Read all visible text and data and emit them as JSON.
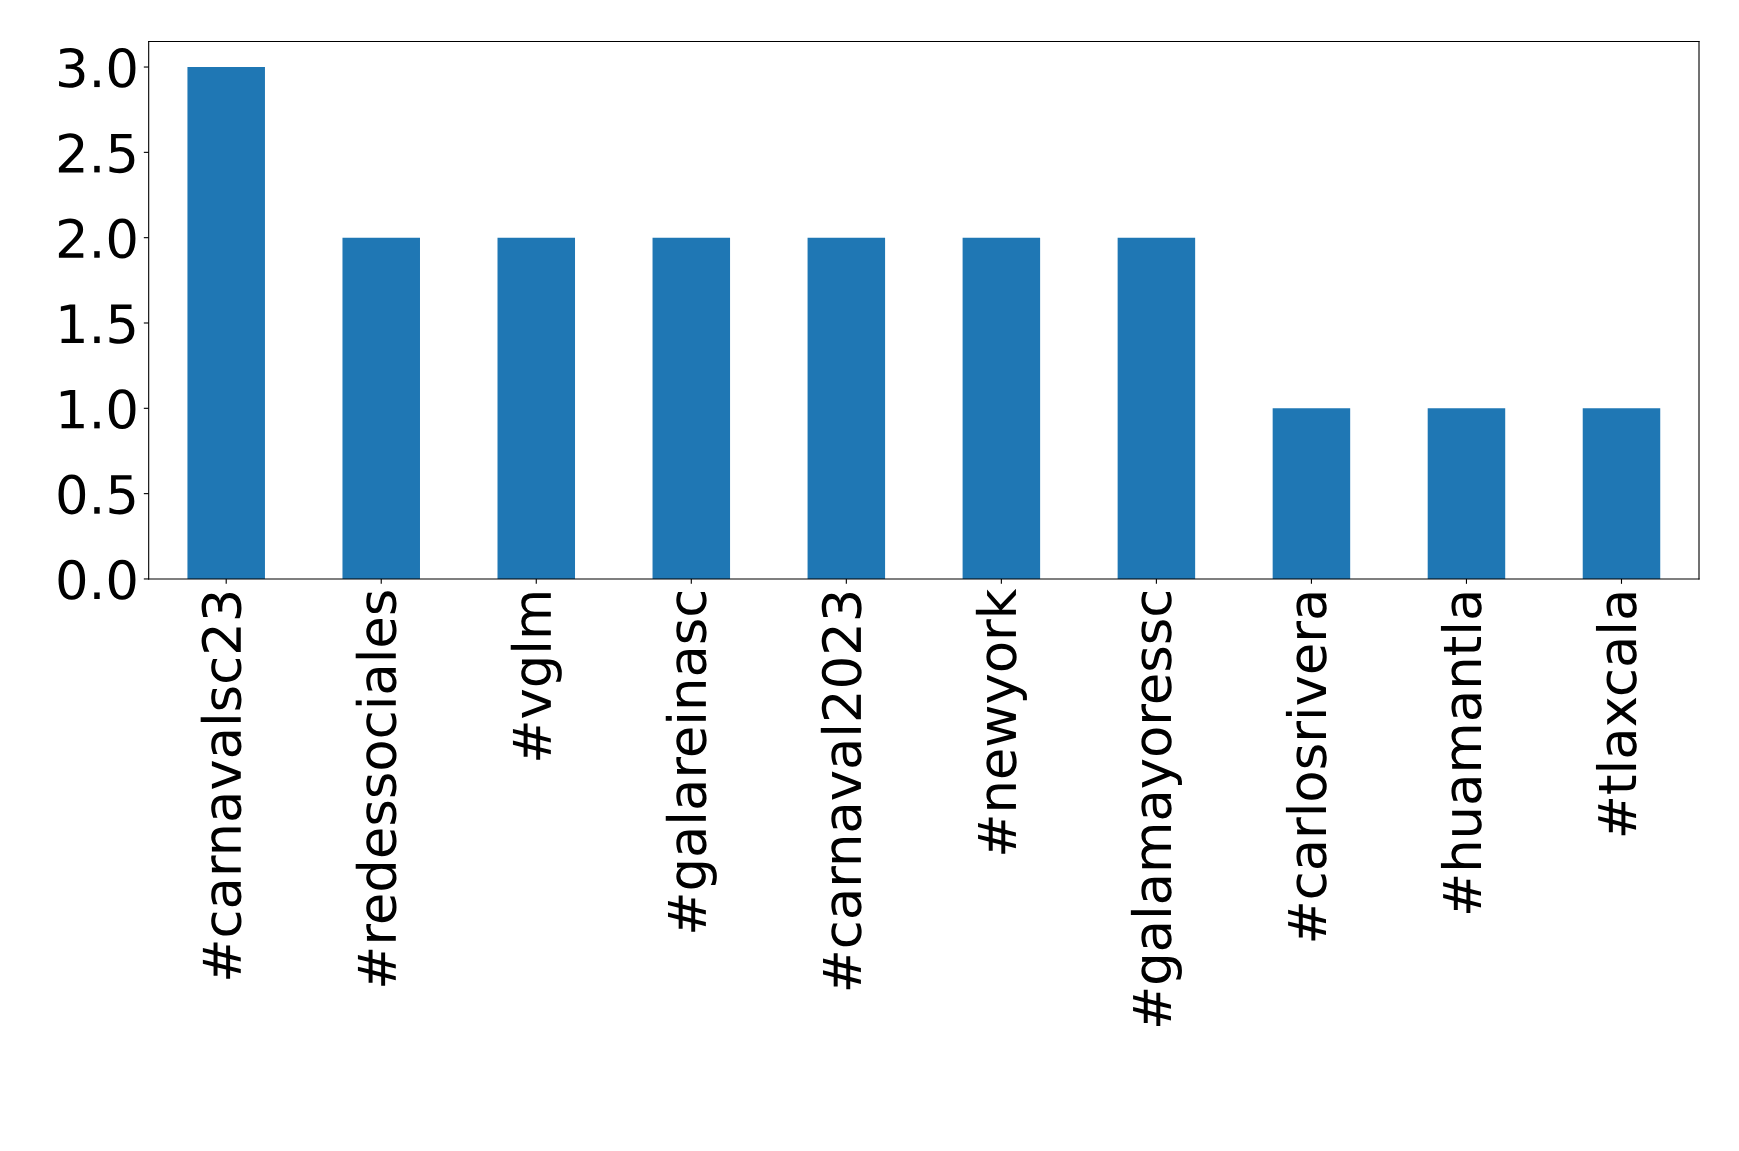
{
  "chart_data": {
    "type": "bar",
    "categories": [
      "#carnavalsc23",
      "#redessociales",
      "#vglm",
      "#galareinasc",
      "#carnaval2023",
      "#newyork",
      "#galamayoressc",
      "#carlosrivera",
      "#huamantla",
      "#tlaxcala"
    ],
    "values": [
      3,
      2,
      2,
      2,
      2,
      2,
      2,
      1,
      1,
      1
    ],
    "color": "#1f77b4",
    "ylim": [
      0,
      3.15
    ],
    "yticks": [
      {
        "value": 0,
        "label": "0.0"
      },
      {
        "value": 0.5,
        "label": "0.5"
      },
      {
        "value": 1,
        "label": "1.0"
      },
      {
        "value": 1.5,
        "label": "1.5"
      },
      {
        "value": 2,
        "label": "2.0"
      },
      {
        "value": 2.5,
        "label": "2.5"
      },
      {
        "value": 3,
        "label": "3.0"
      }
    ],
    "grid": false,
    "legend": false
  }
}
